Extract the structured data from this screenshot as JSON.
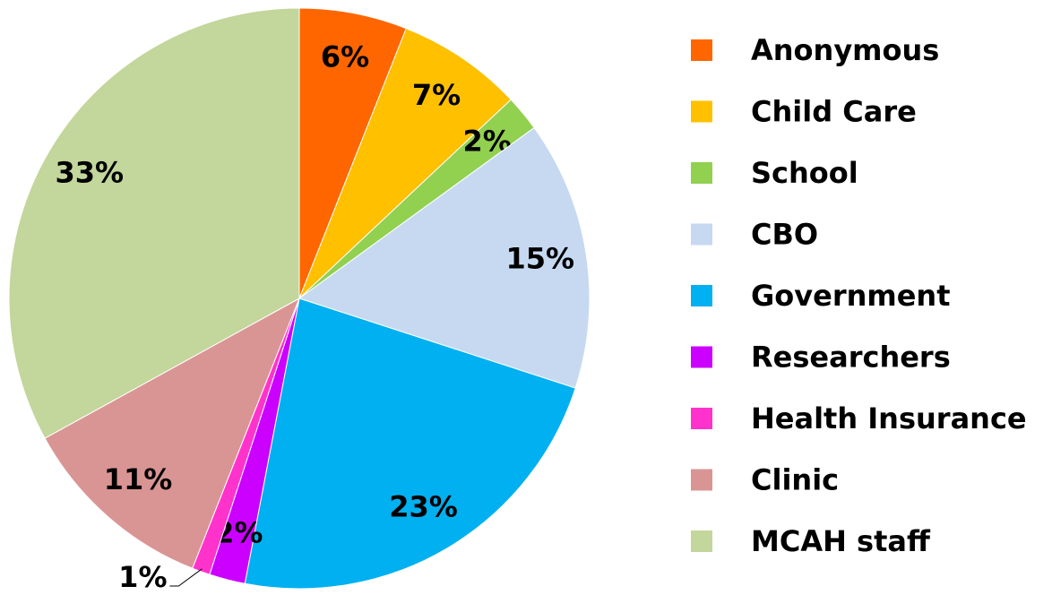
{
  "chart_data": {
    "type": "pie",
    "categories": [
      "Anonymous",
      "Child Care",
      "School",
      "CBO",
      "Government",
      "Researchers",
      "Health Insurance",
      "Clinic",
      "MCAH staff"
    ],
    "values": [
      6,
      7,
      2,
      15,
      23,
      2,
      1,
      11,
      33
    ],
    "value_labels": [
      "6%",
      "7%",
      "2%",
      "15%",
      "23%",
      "2%",
      "1%",
      "11%",
      "33%"
    ],
    "colors": [
      "#ff6600",
      "#ffc000",
      "#92d050",
      "#c6d9f1",
      "#00b0f0",
      "#cc00ff",
      "#ff33cc",
      "#d99594",
      "#c3d69b"
    ],
    "legend": "right"
  }
}
